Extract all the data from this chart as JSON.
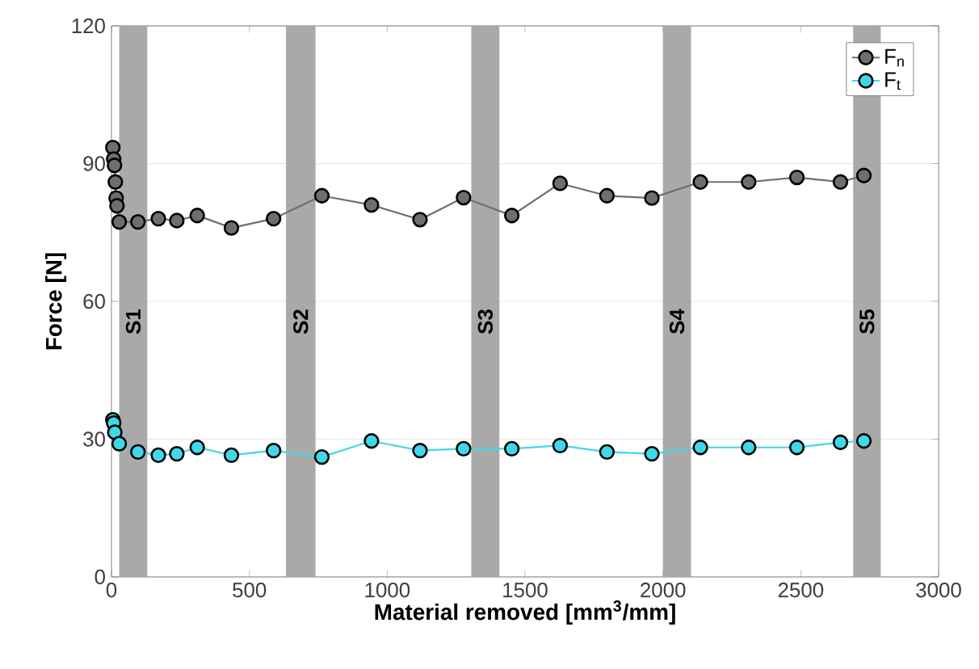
{
  "chart_data": {
    "type": "line",
    "xlabel": "Material removed [mm$^{3}$/mm]",
    "ylabel": "Force [N]",
    "xlim": [
      0,
      3000
    ],
    "ylim": [
      0,
      120
    ],
    "xticks": [
      0,
      500,
      1000,
      1500,
      2000,
      2500,
      3000
    ],
    "yticks": [
      0,
      30,
      60,
      90,
      120
    ],
    "grid": "y",
    "legend": "top right",
    "marker": "circle",
    "line_style": "solid",
    "bands": [
      {
        "axis": "x",
        "from": 28,
        "to": 130,
        "label": "S1",
        "color": "#a9a9a9"
      },
      {
        "axis": "x",
        "from": 633,
        "to": 740,
        "label": "S2",
        "color": "#a9a9a9"
      },
      {
        "axis": "x",
        "from": 1305,
        "to": 1407,
        "label": "S3",
        "color": "#a9a9a9"
      },
      {
        "axis": "x",
        "from": 2000,
        "to": 2102,
        "label": "S4",
        "color": "#a9a9a9"
      },
      {
        "axis": "x",
        "from": 2690,
        "to": 2790,
        "label": "S5",
        "color": "#a9a9a9"
      }
    ],
    "series": [
      {
        "name": "F$_{n}$",
        "color": "#6e6e6e",
        "x": [
          5,
          8,
          11,
          14,
          17,
          20,
          28,
          96,
          170,
          237,
          311,
          435,
          588,
          763,
          943,
          1119,
          1277,
          1452,
          1627,
          1797,
          1960,
          2136,
          2311,
          2486,
          2644,
          2729
        ],
        "values": [
          93.5,
          91,
          89.6,
          86,
          82.5,
          80.8,
          77.3,
          77.3,
          78,
          77.6,
          78.7,
          76,
          78,
          83,
          81,
          77.8,
          82.6,
          78.7,
          85.7,
          83,
          82.5,
          86,
          86,
          87,
          86,
          87.4
        ]
      },
      {
        "name": "F$_{t}$",
        "color": "#40d8e8",
        "x": [
          5,
          8,
          12,
          28,
          96,
          170,
          237,
          311,
          435,
          588,
          763,
          943,
          1119,
          1277,
          1452,
          1627,
          1797,
          1960,
          2136,
          2311,
          2486,
          2644,
          2729
        ],
        "values": [
          34.2,
          33.5,
          31.5,
          29,
          27.2,
          26.5,
          26.8,
          28.2,
          26.5,
          27.5,
          26.1,
          29.6,
          27.5,
          27.9,
          27.9,
          28.6,
          27.2,
          26.8,
          28.2,
          28.2,
          28.2,
          29.3,
          29.6
        ]
      }
    ]
  }
}
